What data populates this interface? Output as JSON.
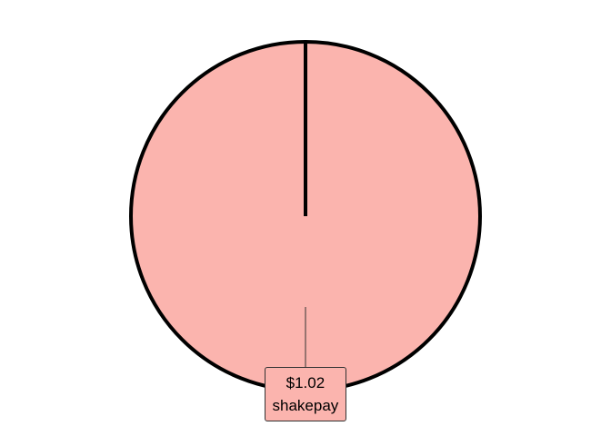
{
  "chart_data": {
    "type": "pie",
    "title": "",
    "legend": "none",
    "slices": [
      {
        "category": "shakepay",
        "value": 1.02,
        "value_label": "$1.02",
        "color": "#FBB4AE"
      }
    ],
    "outline_color": "#000000"
  }
}
